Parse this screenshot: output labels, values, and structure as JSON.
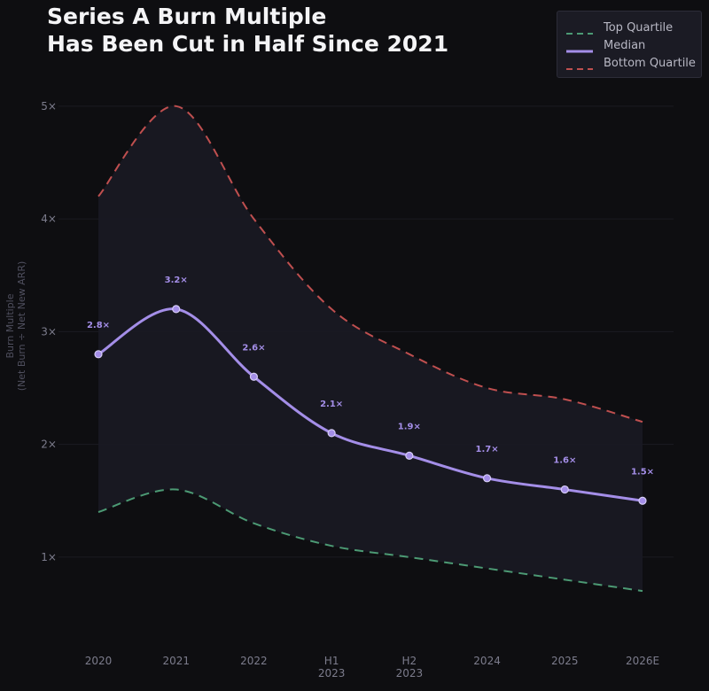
{
  "title": {
    "line1": "Series A Burn Multiple",
    "line2": "Has Been Cut in Half Since 2021"
  },
  "colors": {
    "background": "#0e0e11",
    "median": "#a48ee8",
    "top_quartile": "#4c9a74",
    "bottom_quartile": "#bf4f4f",
    "band_fill": "#1a1a24",
    "grid": "#1b1b22",
    "tick_text": "#7c7c8c"
  },
  "chart_data": {
    "type": "line",
    "title": "Series A Burn Multiple Has Been Cut in Half Since 2021",
    "ylabel_line1": "Burn Multiple",
    "ylabel_line2": "(Net Burn ÷ Net New ARR)",
    "categories": [
      "2020",
      "2021",
      "2022",
      "H1 2023",
      "H2 2023",
      "2024",
      "2025",
      "2026E"
    ],
    "category_lines": [
      [
        "2020"
      ],
      [
        "2021"
      ],
      [
        "2022"
      ],
      [
        "H1",
        "2023"
      ],
      [
        "H2",
        "2023"
      ],
      [
        "2024"
      ],
      [
        "2025"
      ],
      [
        "2026E"
      ]
    ],
    "y_ticks": [
      1,
      2,
      3,
      4,
      5
    ],
    "y_tick_labels": [
      "1×",
      "2×",
      "3×",
      "4×",
      "5×"
    ],
    "ylim": [
      0.3,
      5.25
    ],
    "grid": true,
    "legend_position": "top-right",
    "series": [
      {
        "name": "Top Quartile",
        "style": "dashed",
        "values": [
          1.4,
          1.6,
          1.3,
          1.1,
          1.0,
          0.9,
          0.8,
          0.7
        ]
      },
      {
        "name": "Median",
        "style": "solid",
        "values": [
          2.8,
          3.2,
          2.6,
          2.1,
          1.9,
          1.7,
          1.6,
          1.5
        ],
        "data_labels": [
          "2.8×",
          "3.2×",
          "2.6×",
          "2.1×",
          "1.9×",
          "1.7×",
          "1.6×",
          "1.5×"
        ]
      },
      {
        "name": "Bottom Quartile",
        "style": "dashed",
        "values": [
          4.2,
          5.0,
          4.0,
          3.2,
          2.8,
          2.5,
          2.4,
          2.2
        ]
      }
    ]
  }
}
